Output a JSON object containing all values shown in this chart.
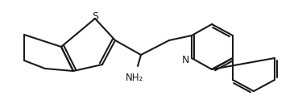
{
  "bg": "#ffffff",
  "lw": 1.5,
  "lw2": 1.5,
  "color": "#1a1a1a",
  "figw": 3.7,
  "figh": 1.19,
  "dpi": 100,
  "S_label": "S",
  "N_label": "N",
  "NH2_label": "NH₂"
}
